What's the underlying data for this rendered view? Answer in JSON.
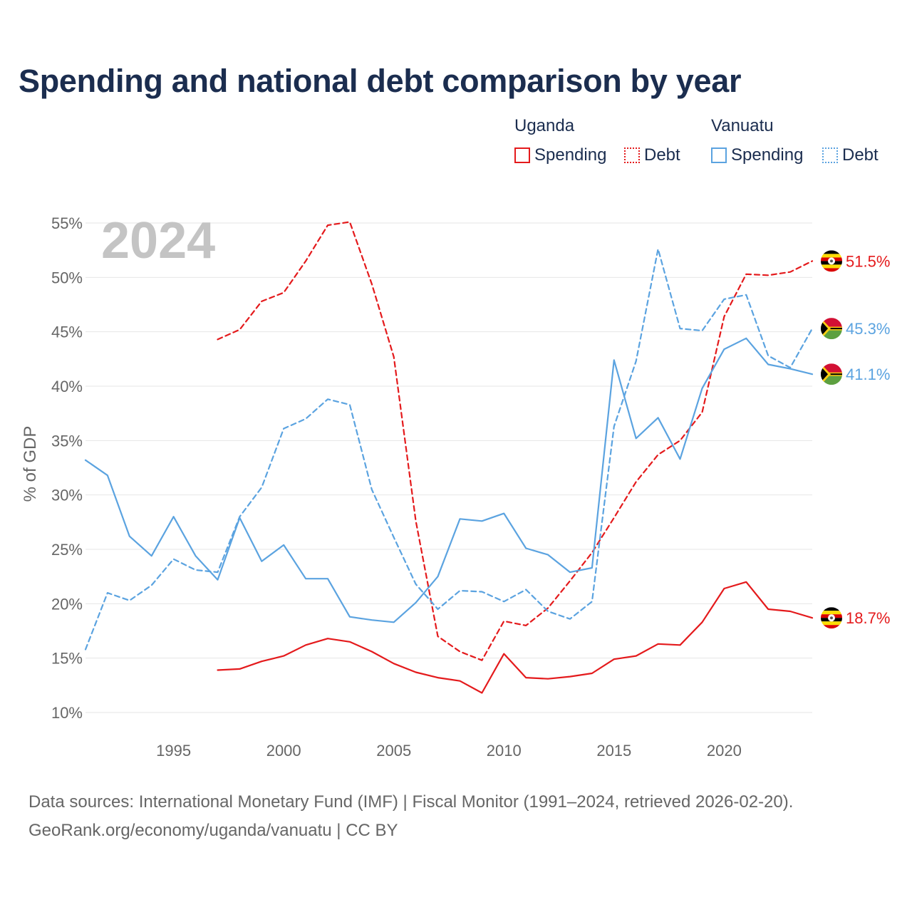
{
  "title": "Spending and national debt comparison by year",
  "legend": {
    "groups": [
      {
        "country": "Uganda",
        "color": "#e41a1c",
        "items": [
          {
            "label": "Spending",
            "style": "solid"
          },
          {
            "label": "Debt",
            "style": "dotted"
          }
        ]
      },
      {
        "country": "Vanuatu",
        "color": "#5ba3e0",
        "items": [
          {
            "label": "Spending",
            "style": "solid"
          },
          {
            "label": "Debt",
            "style": "dotted"
          }
        ]
      }
    ]
  },
  "footer": {
    "line1": "Data sources: International Monetary Fund (IMF) | Fiscal Monitor (1991–2024, retrieved 2026-02-20).",
    "line2": "GeoRank.org/economy/uganda/vanuatu | CC BY"
  },
  "chart_data": {
    "type": "line",
    "year_watermark": "2024",
    "ylabel": "% of GDP",
    "xlim": [
      1991,
      2024
    ],
    "ylim": [
      10,
      55
    ],
    "y_ticks": [
      10,
      15,
      20,
      25,
      30,
      35,
      40,
      45,
      50,
      55
    ],
    "y_tick_labels": [
      "10%",
      "15%",
      "20%",
      "25%",
      "30%",
      "35%",
      "40%",
      "45%",
      "50%",
      "55%"
    ],
    "x_ticks": [
      1995,
      2000,
      2005,
      2010,
      2015,
      2020
    ],
    "x_tick_labels": [
      "1995",
      "2000",
      "2005",
      "2010",
      "2015",
      "2020"
    ],
    "grid": true,
    "series": [
      {
        "name": "Uganda Spending",
        "country": "Uganda",
        "color": "#e41a1c",
        "dash": "solid",
        "x": [
          1997,
          1998,
          1999,
          2000,
          2001,
          2002,
          2003,
          2004,
          2005,
          2006,
          2007,
          2008,
          2009,
          2010,
          2011,
          2012,
          2013,
          2014,
          2015,
          2016,
          2017,
          2018,
          2019,
          2020,
          2021,
          2022,
          2023,
          2024
        ],
        "values": [
          13.9,
          14.0,
          14.7,
          15.2,
          16.2,
          16.8,
          16.5,
          15.6,
          14.5,
          13.7,
          13.2,
          12.9,
          11.8,
          15.4,
          13.2,
          13.1,
          13.3,
          13.6,
          14.9,
          15.2,
          16.3,
          16.2,
          18.3,
          21.4,
          22.0,
          19.5,
          19.3,
          18.7
        ],
        "end_label": "18.7%"
      },
      {
        "name": "Uganda Debt",
        "country": "Uganda",
        "color": "#e41a1c",
        "dash": "dashed",
        "x": [
          1997,
          1998,
          1999,
          2000,
          2001,
          2002,
          2003,
          2004,
          2005,
          2006,
          2007,
          2008,
          2009,
          2010,
          2011,
          2012,
          2013,
          2014,
          2015,
          2016,
          2017,
          2018,
          2019,
          2020,
          2021,
          2022,
          2023,
          2024
        ],
        "values": [
          44.3,
          45.2,
          47.8,
          48.6,
          51.5,
          54.8,
          55.1,
          49.4,
          42.7,
          27.6,
          17.0,
          15.6,
          14.8,
          18.4,
          18.0,
          19.6,
          22.1,
          24.7,
          27.9,
          31.2,
          33.7,
          35.0,
          37.6,
          46.4,
          50.3,
          50.2,
          50.5,
          51.5
        ],
        "end_label": "51.5%"
      },
      {
        "name": "Vanuatu Spending",
        "country": "Vanuatu",
        "color": "#5ba3e0",
        "dash": "solid",
        "x": [
          1991,
          1992,
          1993,
          1994,
          1995,
          1996,
          1997,
          1998,
          1999,
          2000,
          2001,
          2002,
          2003,
          2004,
          2005,
          2006,
          2007,
          2008,
          2009,
          2010,
          2011,
          2012,
          2013,
          2014,
          2015,
          2016,
          2017,
          2018,
          2019,
          2020,
          2021,
          2022,
          2023,
          2024
        ],
        "values": [
          33.2,
          31.8,
          26.2,
          24.4,
          28.0,
          24.4,
          22.2,
          27.9,
          23.9,
          25.4,
          22.3,
          22.3,
          18.8,
          18.5,
          18.3,
          20.1,
          22.5,
          27.8,
          27.6,
          28.3,
          25.1,
          24.5,
          22.9,
          23.3,
          42.4,
          35.2,
          37.1,
          33.3,
          39.8,
          43.4,
          44.4,
          42.0,
          41.6,
          41.1
        ],
        "end_label": "41.1%"
      },
      {
        "name": "Vanuatu Debt",
        "country": "Vanuatu",
        "color": "#5ba3e0",
        "dash": "dashed",
        "x": [
          1991,
          1992,
          1993,
          1994,
          1995,
          1996,
          1997,
          1998,
          1999,
          2000,
          2001,
          2002,
          2003,
          2004,
          2005,
          2006,
          2007,
          2008,
          2009,
          2010,
          2011,
          2012,
          2013,
          2014,
          2015,
          2016,
          2017,
          2018,
          2019,
          2020,
          2021,
          2022,
          2023,
          2024
        ],
        "values": [
          15.8,
          21.0,
          20.3,
          21.7,
          24.1,
          23.1,
          22.9,
          28.0,
          30.7,
          36.1,
          37.0,
          38.8,
          38.3,
          30.5,
          26.1,
          21.8,
          19.5,
          21.2,
          21.1,
          20.2,
          21.3,
          19.3,
          18.6,
          20.2,
          36.3,
          42.3,
          52.6,
          45.3,
          45.1,
          48.0,
          48.4,
          42.8,
          41.7,
          45.3
        ],
        "end_label": "45.3%"
      }
    ]
  }
}
